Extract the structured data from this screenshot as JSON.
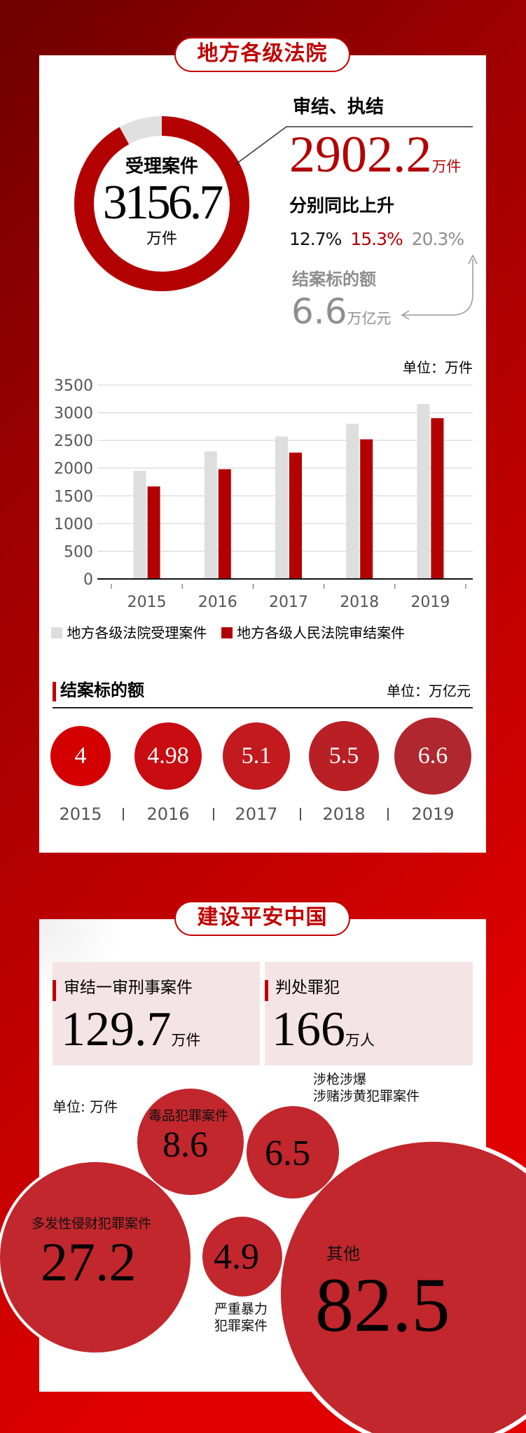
{
  "section1": {
    "title": "地方各级法院",
    "donut": {
      "label": "受理案件",
      "value": "3156.7",
      "unit": "万件",
      "accepted": 3156.7,
      "concluded": 2902.2,
      "colors": {
        "concluded": "#b30000",
        "rest": "#e0e0e0"
      }
    },
    "concluded": {
      "label": "审结、执结",
      "value": "2902.2",
      "unit": "万件"
    },
    "growth": {
      "label": "分别同比上升",
      "values": [
        "12.7%",
        "15.3%",
        "20.3%"
      ]
    },
    "amount": {
      "label": "结案标的额",
      "value": "6.6",
      "unit": "万亿元"
    }
  },
  "chart_data": {
    "type": "bar",
    "unit_label": "单位：万件",
    "categories": [
      "2015",
      "2016",
      "2017",
      "2018",
      "2019"
    ],
    "series": [
      {
        "name": "地方各级法院受理案件",
        "color": "#dedede",
        "values": [
          1950,
          2300,
          2570,
          2800,
          3156.7
        ]
      },
      {
        "name": "地方各级人民法院审结案件",
        "color": "#b30000",
        "values": [
          1670,
          1980,
          2280,
          2520,
          2902.2
        ]
      }
    ],
    "yticks": [
      "0",
      "500",
      "1000",
      "1500",
      "2000",
      "2500",
      "3000",
      "3500"
    ],
    "ylim": [
      0,
      3500
    ],
    "grid": true,
    "legend": "bottom"
  },
  "amount_section": {
    "title": "结案标的额",
    "unit": "单位：万亿元",
    "items": [
      {
        "year": "2015",
        "value": "4",
        "color": "#d40000"
      },
      {
        "year": "2016",
        "value": "4.98",
        "color": "#c80c12"
      },
      {
        "year": "2017",
        "value": "5.1",
        "color": "#c21a1f"
      },
      {
        "year": "2018",
        "value": "5.5",
        "color": "#b82026"
      },
      {
        "year": "2019",
        "value": "6.6",
        "color": "#b0272f"
      }
    ]
  },
  "section2": {
    "title": "建设平安中国",
    "box1": {
      "label": "审结一审刑事案件",
      "value": "129.7",
      "unit": "万件"
    },
    "box2": {
      "label": "判处罪犯",
      "value": "166",
      "unit": "万人"
    },
    "unit": "单位: 万件",
    "bubbles": {
      "drug": {
        "label": "毒品犯罪案件",
        "value": "8.6"
      },
      "gun": {
        "label1": "涉枪涉爆",
        "label2": "涉赌涉黄犯罪案件",
        "value": "6.5"
      },
      "property": {
        "label": "多发性侵财犯罪案件",
        "value": "27.2"
      },
      "violence": {
        "label1": "严重暴力",
        "label2": "犯罪案件",
        "value": "4.9"
      },
      "other": {
        "label": "其他",
        "value": "82.5"
      }
    }
  }
}
